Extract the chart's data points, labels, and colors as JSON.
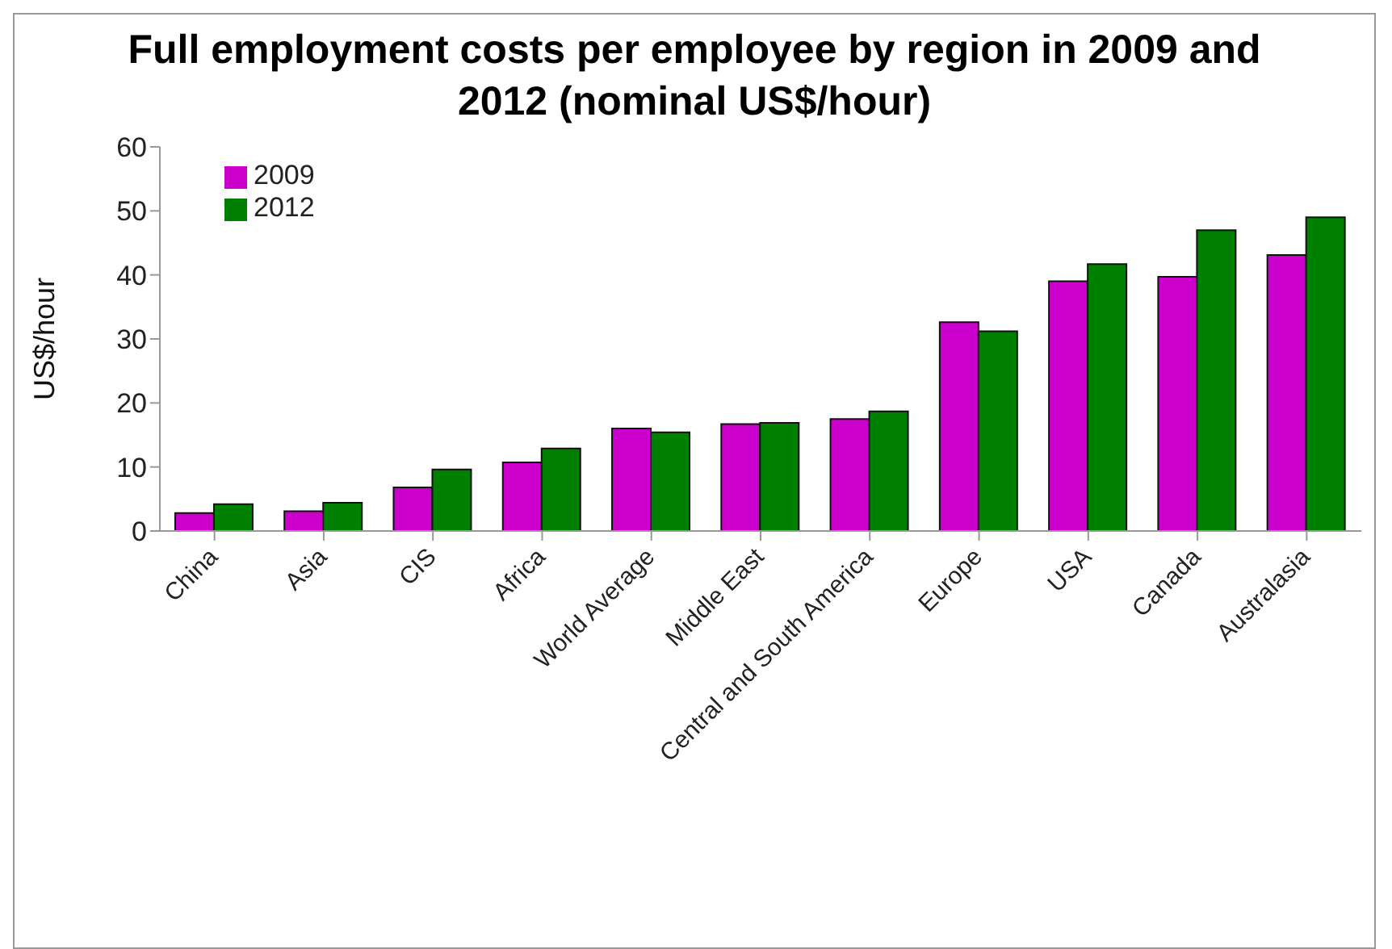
{
  "chart_data": {
    "type": "bar",
    "title": "Full employment costs per employee by region in 2009 and 2012 (nominal US$/hour)",
    "ylabel": "US$/hour",
    "categories": [
      "China",
      "Asia",
      "CIS",
      "Africa",
      "World Average",
      "Middle East",
      "Central and South America",
      "Europe",
      "USA",
      "Canada",
      "Australasia"
    ],
    "series": [
      {
        "name": "2009",
        "color": "#cc00cc",
        "values": [
          2.8,
          3.1,
          6.8,
          10.7,
          16.0,
          16.7,
          17.5,
          32.6,
          39.0,
          39.7,
          43.1
        ]
      },
      {
        "name": "2012",
        "color": "#008000",
        "values": [
          4.2,
          4.4,
          9.6,
          12.9,
          15.4,
          16.9,
          18.7,
          31.2,
          41.7,
          47.0,
          49.0
        ]
      }
    ],
    "ylim": [
      0,
      60
    ],
    "yticks": [
      0,
      10,
      20,
      30,
      40,
      50,
      60
    ],
    "grid": false,
    "legend": "top left"
  }
}
